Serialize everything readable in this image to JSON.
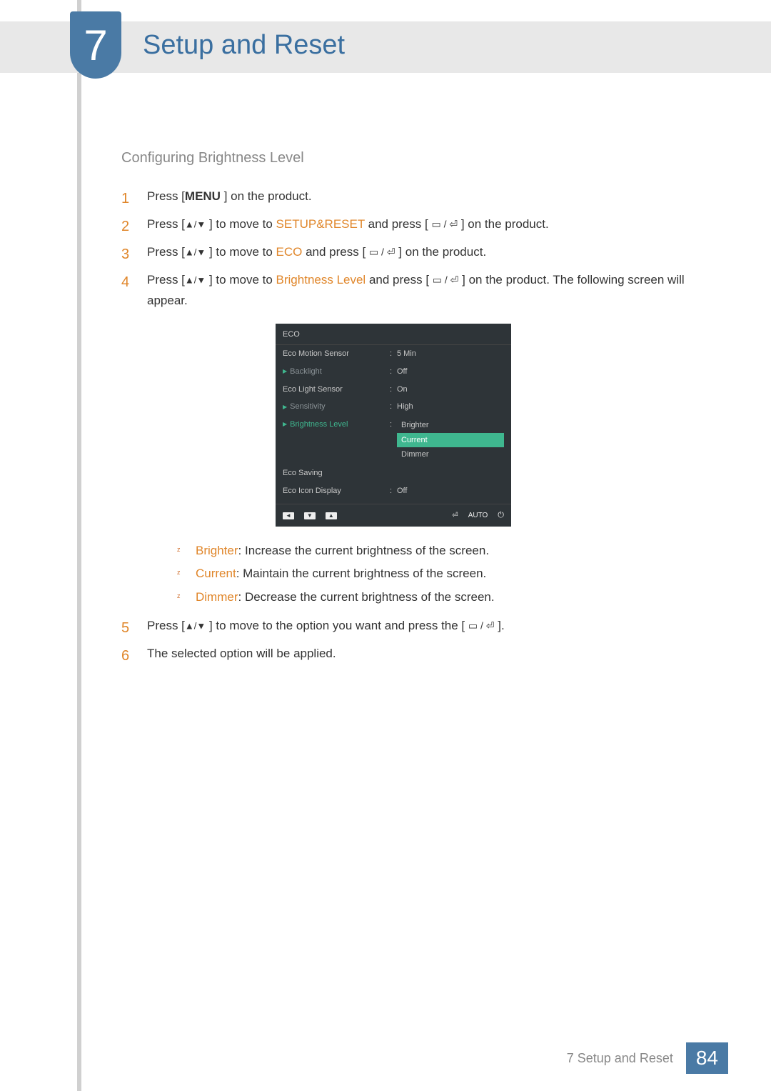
{
  "chapter": {
    "number": "7",
    "title": "Setup and Reset"
  },
  "section_heading": "Configuring Brightness Level",
  "steps": {
    "s1": {
      "pre": "Press [",
      "key": "MENU",
      "post": " ] on the product."
    },
    "s2": {
      "pre": "Press [",
      "arrows": "▲/▼",
      "mid1": " ] to move to ",
      "hl": "SETUP&RESET",
      "mid2": " and press [ ",
      "icons": "▭ / ⏎",
      "post": " ] on the product."
    },
    "s3": {
      "pre": "Press [",
      "arrows": "▲/▼",
      "mid1": " ] to move to ",
      "hl": "ECO",
      "mid2": " and press [ ",
      "icons": "▭ / ⏎",
      "post": " ] on the product."
    },
    "s4": {
      "pre": "Press [",
      "arrows": "▲/▼",
      "mid1": " ] to move to ",
      "hl": "Brightness Level",
      "mid2": " and press [ ",
      "icons": "▭ / ⏎",
      "post": " ] on the product. The following screen will appear."
    },
    "s5": {
      "pre": "Press [",
      "arrows": "▲/▼",
      "mid1": " ] to move to the option you want and press the [ ",
      "icons": "▭ / ⏎",
      "post": " ]."
    },
    "s6": {
      "text": "The selected option will be applied."
    }
  },
  "osd": {
    "title": "ECO",
    "rows": [
      {
        "label": "Eco Motion Sensor",
        "value": "5 Min",
        "style": "normal"
      },
      {
        "label": "Backlight",
        "value": "Off",
        "style": "dim",
        "triangle": true
      },
      {
        "label": "Eco Light Sensor",
        "value": "On",
        "style": "normal"
      },
      {
        "label": "Sensitivity",
        "value": "High",
        "style": "dim",
        "triangle": true
      },
      {
        "label": "Brightness Level",
        "style": "active",
        "triangle": true,
        "options": [
          "Brighter",
          "Current",
          "Dimmer"
        ],
        "selected": "Current"
      },
      {
        "label": "Eco Saving",
        "value": "",
        "style": "normal"
      },
      {
        "label": "Eco Icon Display",
        "value": "Off",
        "style": "normal"
      }
    ],
    "footer": {
      "left": [
        "◄",
        "▼",
        "▲"
      ],
      "right_icon": "⏎",
      "right_auto": "AUTO",
      "right_power": "⏻"
    }
  },
  "bullets": {
    "b1": {
      "term": "Brighter",
      "desc": ": Increase the current brightness of the screen."
    },
    "b2": {
      "term": "Current",
      "desc": ": Maintain the current brightness of the screen."
    },
    "b3": {
      "term": "Dimmer",
      "desc": ": Decrease the current brightness of the screen."
    }
  },
  "footer": {
    "text": "7 Setup and Reset",
    "page": "84"
  }
}
